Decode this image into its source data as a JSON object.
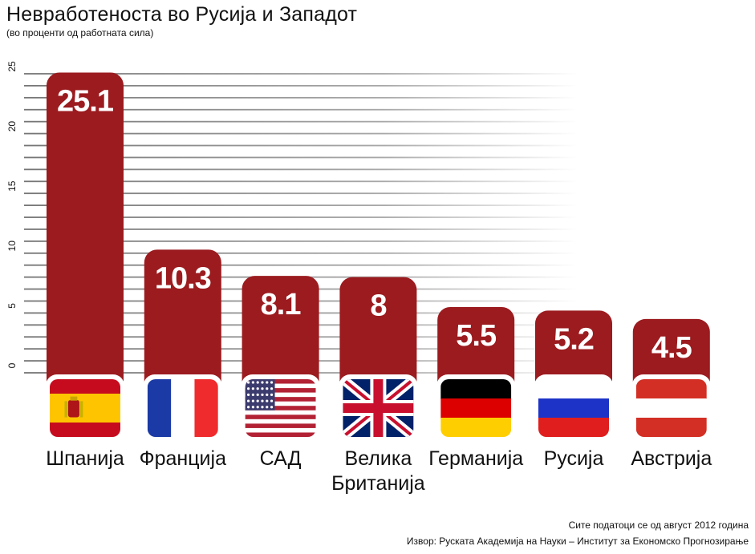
{
  "header": {
    "title": "Невработеноста во Русија и Западот",
    "subtitle": "(во проценти од работната сила)"
  },
  "footer": {
    "note": "Сите податоци се од август 2012 година",
    "source": "Извор: Руската Академија на Науки – Институт за Економско Прогнозирање"
  },
  "colors": {
    "bar": "#9b1b1f",
    "grid": "#6e6e6e",
    "value_text": "#ffffff"
  },
  "chart_data": {
    "type": "bar",
    "title": "Невработеноста во Русија и Западот",
    "subtitle": "(во проценти од работната сила)",
    "categories": [
      "Шпанија",
      "Франција",
      "САД",
      "Велика Британија",
      "Германија",
      "Русија",
      "Австрија"
    ],
    "category_lines": [
      [
        "Шпанија"
      ],
      [
        "Франција"
      ],
      [
        "САД"
      ],
      [
        "Велика",
        "Британија"
      ],
      [
        "Германија"
      ],
      [
        "Русија"
      ],
      [
        "Австрија"
      ]
    ],
    "values": [
      25.1,
      10.3,
      8.1,
      8,
      5.5,
      5.2,
      4.5
    ],
    "value_labels": [
      "25.1",
      "10.3",
      "8.1",
      "8",
      "5.5",
      "5.2",
      "4.5"
    ],
    "flags": [
      "spain-flag",
      "france-flag",
      "usa-flag",
      "uk-flag",
      "germany-flag",
      "russia-flag",
      "austria-flag"
    ],
    "ytick_labels": [
      "0",
      "5",
      "10",
      "15",
      "20",
      "25"
    ],
    "ylim": [
      0,
      25
    ],
    "grid": true,
    "legend": "none"
  }
}
